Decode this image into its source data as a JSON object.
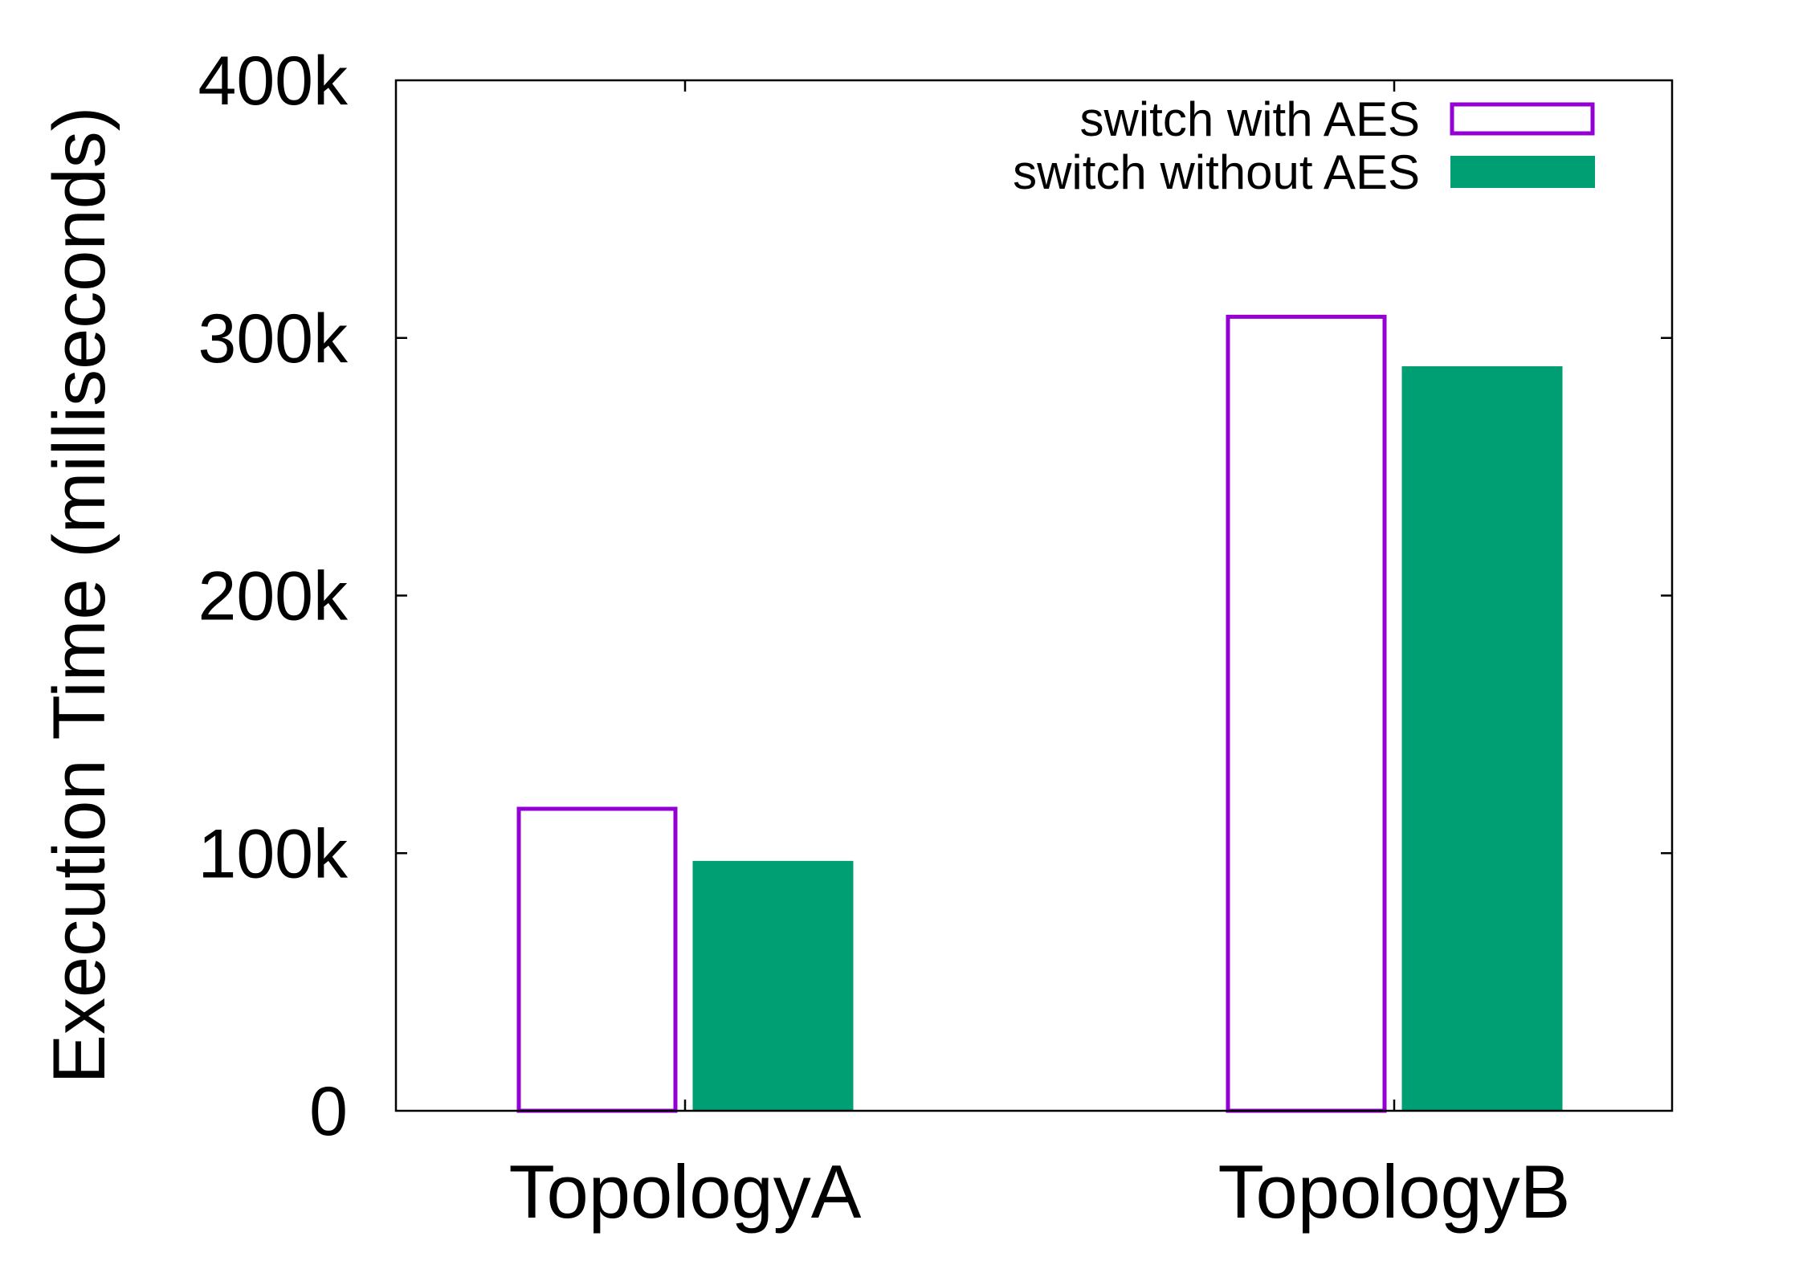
{
  "chart_data": {
    "type": "bar",
    "title": "",
    "xlabel": "",
    "ylabel": "Execution Time (milliseconds)",
    "categories": [
      "TopologyA",
      "TopologyB"
    ],
    "series": [
      {
        "name": "switch with AES",
        "values": [
          118000,
          309000
        ],
        "style": "outline",
        "color": "#9400d3"
      },
      {
        "name": "switch without AES",
        "values": [
          97000,
          289000
        ],
        "style": "filled",
        "color": "#009e73"
      }
    ],
    "ylim": [
      0,
      400000
    ],
    "yticks": [
      {
        "value": 0,
        "label": "0"
      },
      {
        "value": 100000,
        "label": "100k"
      },
      {
        "value": 200000,
        "label": "200k"
      },
      {
        "value": 300000,
        "label": "300k"
      },
      {
        "value": 400000,
        "label": "400k"
      }
    ],
    "grid": false,
    "legend_position": "top-right"
  }
}
